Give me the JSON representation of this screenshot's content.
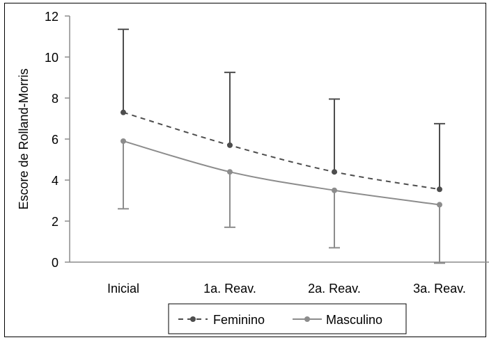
{
  "chart_data": {
    "type": "line",
    "title": "",
    "xlabel": "",
    "ylabel": "Escore de Rolland-Morris",
    "categories": [
      "Inicial",
      "1a. Reav.",
      "2a. Reav.",
      "3a. Reav."
    ],
    "ylim": [
      0,
      12
    ],
    "yticks": [
      0,
      2,
      4,
      6,
      8,
      10,
      12
    ],
    "grid": false,
    "legend_position": "bottom",
    "series": [
      {
        "name": "Feminino",
        "values": [
          7.3,
          5.7,
          4.4,
          3.55
        ],
        "error_upper": [
          11.35,
          9.25,
          7.95,
          6.75
        ],
        "line_style": "dashed",
        "color": "#4d4d4d",
        "error_direction": "up"
      },
      {
        "name": "Masculino",
        "values": [
          5.9,
          4.4,
          3.5,
          2.8
        ],
        "error_lower": [
          2.6,
          1.7,
          0.7,
          -0.05
        ],
        "line_style": "solid",
        "color": "#8c8c8c",
        "error_direction": "down"
      }
    ]
  }
}
